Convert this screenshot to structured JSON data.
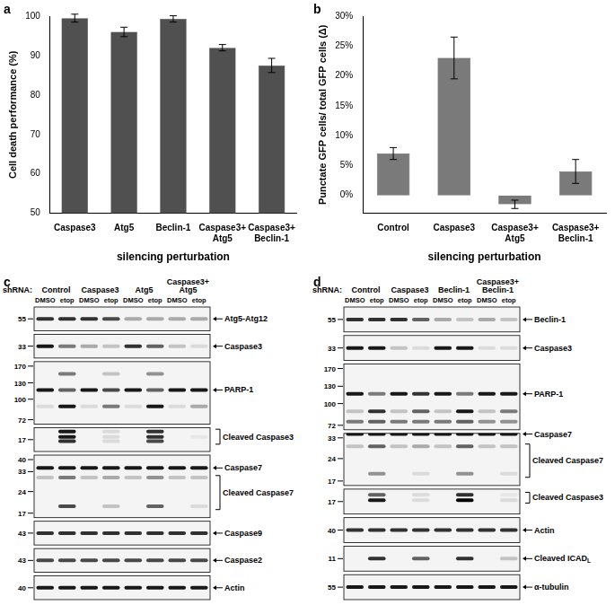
{
  "chart_data": [
    {
      "type": "bar",
      "panel": "a",
      "categories": [
        "Caspase3",
        "Atg5",
        "Beclin-1",
        [
          "Caspase3+",
          "Atg5"
        ],
        [
          "Caspase3+",
          "Beclin-1"
        ]
      ],
      "values": [
        99.5,
        96,
        99.3,
        92,
        87.5
      ],
      "errors": [
        1,
        1.2,
        0.8,
        0.8,
        1.8
      ],
      "color": "#505050",
      "x_label": "silencing perturbation",
      "y_label": "Cell death performance (%)",
      "ylim": [
        50,
        100
      ],
      "yticks": [
        50,
        60,
        70,
        80,
        90,
        100
      ],
      "grid": false
    },
    {
      "type": "bar",
      "panel": "b",
      "categories": [
        "Control",
        "Caspase3",
        [
          "Caspase3+",
          "Atg5"
        ],
        [
          "Caspase3+",
          "Beclin-1"
        ]
      ],
      "values": [
        7,
        23,
        -1.5,
        4
      ],
      "errors": [
        1,
        3.5,
        0.7,
        2
      ],
      "color": "#7a7a7a",
      "x_label": "silencing perturbation",
      "y_label": "Punctate GFP cells/ total GFP cells (Δ)",
      "ylim": [
        -3,
        30
      ],
      "yticks": [
        {
          "value": 0,
          "label": "0%"
        },
        {
          "value": 5,
          "label": "5%"
        },
        {
          "value": 10,
          "label": "10%"
        },
        {
          "value": 15,
          "label": "15%"
        },
        {
          "value": 20,
          "label": "20%"
        },
        {
          "value": 25,
          "label": "25%"
        },
        {
          "value": 30,
          "label": "30%"
        }
      ],
      "grid": false
    }
  ],
  "blots": [
    {
      "panel": "c",
      "lane_header": "shRNA:",
      "groups": [
        [
          "Control"
        ],
        [
          "Caspase3"
        ],
        [
          "Atg5"
        ],
        [
          "Caspase3+",
          "Atg5"
        ]
      ],
      "conditions": [
        "DMSO",
        "etop"
      ],
      "rows": [
        {
          "markers": [
            55
          ],
          "labels": [
            {
              "text": "Atg5-Atg12",
              "mw": 55
            }
          ],
          "bands": [
            {
              "mw": 55,
              "lanes": [
                0.8,
                0.8,
                0.8,
                0.7,
                0.3,
                0.3,
                0.3,
                0.3
              ]
            }
          ]
        },
        {
          "markers": [
            33
          ],
          "labels": [
            {
              "text": "Caspase3",
              "mw": 33
            }
          ],
          "bands": [
            {
              "mw": 33,
              "lanes": [
                0.9,
                0.5,
                0.3,
                0.2,
                0.8,
                0.6,
                0.2,
                0.1
              ]
            }
          ]
        },
        {
          "markers": [
            170,
            130,
            100,
            72
          ],
          "labels": [
            {
              "text": "PARP-1",
              "mw": 116
            }
          ],
          "bands": [
            {
              "mw": 150,
              "lanes": [
                0,
                0.5,
                0,
                0.2,
                0,
                0.4,
                0,
                0
              ]
            },
            {
              "mw": 116,
              "lanes": [
                0.9,
                0.6,
                0.9,
                0.7,
                0.9,
                0.6,
                0.9,
                0.9
              ]
            },
            {
              "mw": 89,
              "lanes": [
                0.1,
                0.9,
                0.1,
                0.5,
                0.1,
                0.9,
                0.1,
                0.3
              ]
            }
          ]
        },
        {
          "markers": [
            17
          ],
          "labels": [
            {
              "text": "Cleaved Caspase3",
              "span": [
                21,
                15.5
              ]
            }
          ],
          "bands": [
            {
              "mw": 20,
              "lanes": [
                0,
                0.9,
                0,
                0.1,
                0,
                0.8,
                0,
                0
              ]
            },
            {
              "mw": 18,
              "lanes": [
                0,
                0.9,
                0,
                0.1,
                0,
                0.8,
                0,
                0.05
              ]
            },
            {
              "mw": 16.5,
              "lanes": [
                0,
                0.8,
                0,
                0.1,
                0,
                0.7,
                0,
                0
              ]
            }
          ]
        },
        {
          "markers": [
            40,
            33,
            24,
            17
          ],
          "labels": [
            {
              "text": "Caspase7",
              "mw": 35
            },
            {
              "text": "Cleaved Caspase7",
              "span": [
                31,
                18
              ]
            }
          ],
          "bands": [
            {
              "mw": 35,
              "lanes": [
                0.9,
                0.9,
                0.9,
                0.9,
                0.9,
                0.9,
                0.9,
                0.9
              ]
            },
            {
              "mw": 30,
              "lanes": [
                0.2,
                0.5,
                0.2,
                0.3,
                0.2,
                0.4,
                0.2,
                0.2
              ]
            },
            {
              "mw": 19,
              "lanes": [
                0,
                0.7,
                0,
                0.2,
                0,
                0.6,
                0,
                0.1
              ]
            }
          ]
        },
        {
          "markers": [
            43
          ],
          "labels": [
            {
              "text": "Caspase9",
              "mw": 43
            }
          ],
          "bands": [
            {
              "mw": 43,
              "lanes": [
                0.8,
                0.8,
                0.8,
                0.8,
                0.8,
                0.8,
                0.8,
                0.8
              ]
            }
          ]
        },
        {
          "markers": [
            43
          ],
          "labels": [
            {
              "text": "Caspase2",
              "mw": 43
            }
          ],
          "bands": [
            {
              "mw": 43,
              "lanes": [
                0.7,
                0.7,
                0.7,
                0.7,
                0.7,
                0.7,
                0.7,
                0.7
              ]
            }
          ]
        },
        {
          "markers": [
            40
          ],
          "labels": [
            {
              "text": "Actin",
              "mw": 40
            }
          ],
          "bands": [
            {
              "mw": 40,
              "lanes": [
                0.9,
                0.9,
                0.9,
                0.9,
                0.9,
                0.9,
                0.9,
                0.9
              ]
            }
          ]
        }
      ]
    },
    {
      "panel": "d",
      "lane_header": "shRNA:",
      "groups": [
        [
          "Control"
        ],
        [
          "Caspase3"
        ],
        [
          "Beclin-1"
        ],
        [
          "Caspase3+",
          "Beclin-1"
        ]
      ],
      "conditions": [
        "DMSO",
        "etop"
      ],
      "rows": [
        {
          "markers": [
            55
          ],
          "labels": [
            {
              "text": "Beclin-1",
              "mw": 55
            }
          ],
          "bands": [
            {
              "mw": 55,
              "lanes": [
                0.8,
                0.8,
                0.8,
                0.6,
                0.3,
                0.2,
                0.3,
                0.2
              ]
            }
          ]
        },
        {
          "markers": [
            33
          ],
          "labels": [
            {
              "text": "Caspase3",
              "mw": 33
            }
          ],
          "bands": [
            {
              "mw": 33,
              "lanes": [
                0.9,
                0.9,
                0.2,
                0.1,
                0.9,
                0.9,
                0.1,
                0.1
              ]
            }
          ]
        },
        {
          "markers": [
            170,
            130,
            100,
            72
          ],
          "labels": [
            {
              "text": "PARP-1",
              "mw": 116
            }
          ],
          "bands": [
            {
              "mw": 116,
              "lanes": [
                0.9,
                0.5,
                0.9,
                0.8,
                0.9,
                0.5,
                0.9,
                0.9
              ]
            },
            {
              "mw": 89,
              "lanes": [
                0.2,
                0.8,
                0.2,
                0.6,
                0.2,
                0.9,
                0.2,
                0.5
              ]
            },
            {
              "mw": 76,
              "lanes": [
                0.5,
                0.6,
                0.5,
                0.5,
                0.5,
                0.6,
                0.4,
                0.4
              ]
            }
          ]
        },
        {
          "markers": [
            33,
            24,
            17
          ],
          "labels": [
            {
              "text": "Caspase7",
              "mw": 35
            },
            {
              "text": "Cleaved Caspase7",
              "span": [
                30,
                18
              ]
            }
          ],
          "bands": [
            {
              "mw": 35,
              "lanes": [
                0.9,
                0.9,
                0.9,
                0.9,
                0.9,
                0.9,
                0.9,
                0.9
              ]
            },
            {
              "mw": 29,
              "lanes": [
                0.2,
                0.6,
                0.2,
                0.3,
                0.2,
                0.6,
                0.2,
                0.2
              ]
            },
            {
              "mw": 19,
              "lanes": [
                0,
                0.4,
                0,
                0.1,
                0,
                0.4,
                0,
                0.1
              ]
            }
          ]
        },
        {
          "markers": [
            17
          ],
          "labels": [
            {
              "text": "Cleaved Caspase3",
              "span": [
                20.5,
                16.5
              ]
            }
          ],
          "bands": [
            {
              "mw": 19.5,
              "lanes": [
                0,
                0.6,
                0,
                0.1,
                0,
                0.8,
                0,
                0.05
              ]
            },
            {
              "mw": 17.5,
              "lanes": [
                0,
                0.9,
                0,
                0.1,
                0,
                1,
                0,
                0.1
              ]
            }
          ]
        },
        {
          "markers": [
            40
          ],
          "labels": [
            {
              "text": "Actin",
              "mw": 40
            }
          ],
          "bands": [
            {
              "mw": 40,
              "lanes": [
                0.8,
                0.8,
                0.8,
                0.8,
                0.8,
                0.8,
                0.8,
                0.8
              ]
            }
          ]
        },
        {
          "markers": [
            11
          ],
          "labels": [
            {
              "text": "Cleaved ICAD",
              "sub": "L",
              "mw": 11
            }
          ],
          "bands": [
            {
              "mw": 11,
              "lanes": [
                0,
                0.8,
                0,
                0.6,
                0,
                0.8,
                0,
                0.2
              ]
            }
          ]
        },
        {
          "markers": [
            55
          ],
          "labels": [
            {
              "text": "α-tubulin",
              "mw": 55
            }
          ],
          "bands": [
            {
              "mw": 55,
              "lanes": [
                0.9,
                0.9,
                0.9,
                0.9,
                0.9,
                0.9,
                0.9,
                0.9
              ]
            }
          ]
        }
      ]
    }
  ]
}
